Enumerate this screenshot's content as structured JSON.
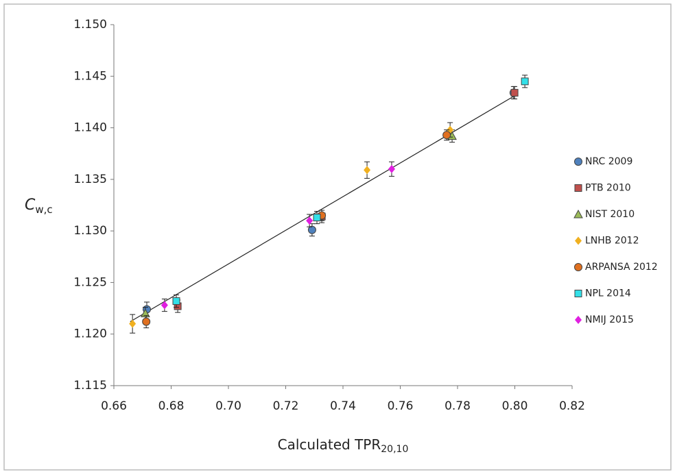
{
  "chart_data": {
    "type": "scatter",
    "x_label": {
      "main": "Calculated TPR",
      "sub": "20,10"
    },
    "y_label": {
      "main": "C",
      "sub": "w,c"
    },
    "xlim": [
      0.66,
      0.82
    ],
    "ylim": [
      1.115,
      1.15
    ],
    "xticks": [
      0.66,
      0.68,
      {
        "value": 0.7,
        "label": "0.70"
      },
      0.72,
      0.74,
      0.76,
      0.78,
      {
        "value": 0.8,
        "label": "0.80"
      },
      0.82
    ],
    "yticks": [
      {
        "value": 1.115,
        "label": "1.115"
      },
      {
        "value": 1.12,
        "label": "1.120"
      },
      {
        "value": 1.125,
        "label": "1.125"
      },
      {
        "value": 1.13,
        "label": "1.130"
      },
      {
        "value": 1.135,
        "label": "1.135"
      },
      {
        "value": 1.14,
        "label": "1.140"
      },
      {
        "value": 1.145,
        "label": "1.145"
      },
      {
        "value": 1.15,
        "label": "1.150"
      }
    ],
    "grid": false,
    "legend": "right",
    "trendline": {
      "x": [
        0.6657,
        0.7999
      ],
      "values": [
        1.1212,
        1.1431
      ]
    },
    "series": [
      {
        "name": "NRC 2009",
        "color": "#4f81bd",
        "marker": "circle",
        "x": [
          0.6715,
          0.7292,
          0.7996
        ],
        "values": [
          1.1224,
          1.1301,
          1.1434
        ],
        "errors": [
          0.0007,
          0.0006,
          0.0006
        ]
      },
      {
        "name": "PTB 2010",
        "color": "#c0504d",
        "marker": "square",
        "x": [
          0.6823,
          0.7326,
          0.7999
        ],
        "values": [
          1.1227,
          1.1314,
          1.1434
        ],
        "errors": [
          0.0006,
          0.0006,
          0.0006
        ]
      },
      {
        "name": "NIST 2010",
        "color": "#9bbb59",
        "marker": "triangle",
        "x": [
          0.671,
          0.7781
        ],
        "values": [
          1.122,
          1.1392
        ],
        "errors": [
          0.0006,
          0.0006
        ]
      },
      {
        "name": "LNHB 2012",
        "color": "#f0b020",
        "marker": "diamond",
        "x": [
          0.6665,
          0.7484,
          0.7774
        ],
        "values": [
          1.121,
          1.1359,
          1.1398
        ],
        "errors": [
          0.0009,
          0.0008,
          0.0007
        ]
      },
      {
        "name": "ARPANSA 2012",
        "color": "#e07020",
        "marker": "circle",
        "x": [
          0.6713,
          0.7326,
          0.7762
        ],
        "values": [
          1.1212,
          1.1315,
          1.1393
        ],
        "errors": [
          0.0006,
          0.0005,
          0.0005
        ]
      },
      {
        "name": "NPL 2014",
        "color": "#33e0e8",
        "marker": "square",
        "x": [
          0.6818,
          0.7309,
          0.8035
        ],
        "values": [
          1.1232,
          1.1313,
          1.1445
        ],
        "errors": [
          0.0006,
          0.0006,
          0.0006
        ]
      },
      {
        "name": "NMIJ 2015",
        "color": "#e020e0",
        "marker": "diamond",
        "x": [
          0.6777,
          0.7283,
          0.757
        ],
        "values": [
          1.1228,
          1.131,
          1.136
        ],
        "errors": [
          0.0006,
          0.0006,
          0.0007
        ]
      }
    ]
  }
}
